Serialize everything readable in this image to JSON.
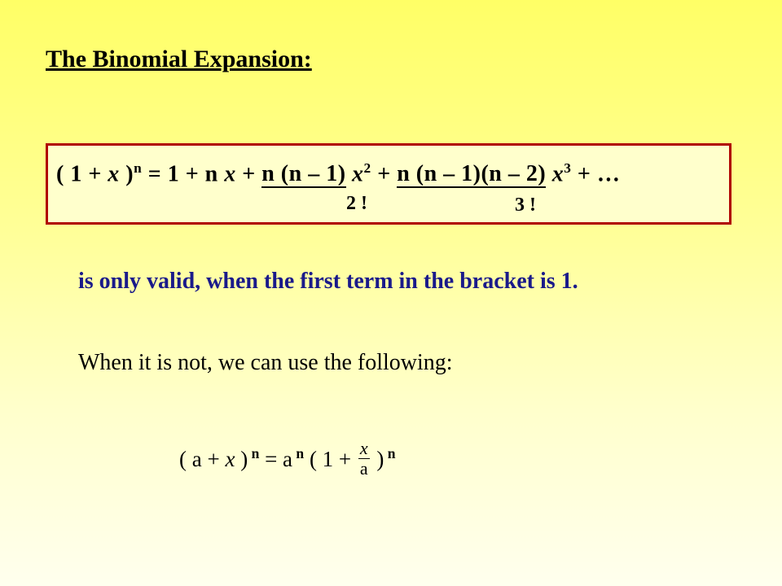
{
  "title": "The Binomial Expansion:",
  "formula_box": {
    "border_color": "#b00000",
    "bg_color": "#ffffcc",
    "line": {
      "lhs_open": "( 1 + ",
      "lhs_var": "x",
      "lhs_close": " )",
      "lhs_exp": "n",
      "eq": " = 1 +  n ",
      "term1_var": "x",
      "plus1": " + ",
      "frac2_top_a": "n",
      "frac2_top_b": "(n – 1)",
      "term2_var": " x",
      "term2_exp": "2",
      "plus2": " + ",
      "frac3_top_a": "n",
      "frac3_top_b": "(n – 1)(n – 2)",
      "term3_var": " x",
      "term3_exp": "3",
      "tail": " + …"
    },
    "denom2": "2 !",
    "denom3": "3 !"
  },
  "note": "is only valid, when the first term in the bracket is 1.",
  "explain": "When it is not, we can use the following:",
  "formula2": {
    "lhs_open": "( a + ",
    "lhs_var": "x",
    "lhs_close": " )",
    "lhs_exp": " n",
    "eq": " =   a",
    "a_exp": " n",
    "mid": " ( 1 + ",
    "frac_top": "x",
    "frac_bot": "a",
    "close": " )",
    "close_exp": " n"
  },
  "colors": {
    "title_color": "#000000",
    "note_color": "#1a1a8a",
    "bg_top": "#ffff66",
    "bg_bottom": "#ffffee"
  },
  "fonts": {
    "family": "Times New Roman",
    "title_size": 30,
    "body_size": 28
  }
}
